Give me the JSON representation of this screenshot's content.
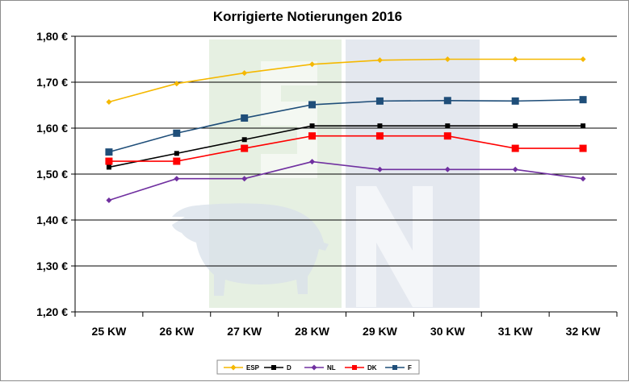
{
  "chart_data": {
    "type": "line",
    "title": "Korrigierte Notierungen 2016",
    "categories": [
      "25 KW",
      "26 KW",
      "27 KW",
      "28 KW",
      "29 KW",
      "30 KW",
      "31 KW",
      "32 KW"
    ],
    "ylim": [
      1.2,
      1.8
    ],
    "yticks": [
      1.2,
      1.3,
      1.4,
      1.5,
      1.6,
      1.7,
      1.8
    ],
    "ytick_labels": [
      "1,20 €",
      "1,30 €",
      "1,40 €",
      "1,50 €",
      "1,60 €",
      "1,70 €",
      "1,80 €"
    ],
    "grid": "horizontal",
    "legend_position": "bottom",
    "series": [
      {
        "name": "ESP",
        "color": "#f5b800",
        "marker": "diamond",
        "values": [
          1.657,
          1.697,
          1.72,
          1.739,
          1.748,
          1.75,
          1.75,
          1.75
        ]
      },
      {
        "name": "D",
        "color": "#000000",
        "marker": "square-small",
        "values": [
          1.515,
          1.545,
          1.575,
          1.605,
          1.605,
          1.605,
          1.605,
          1.605
        ]
      },
      {
        "name": "NL",
        "color": "#7030a0",
        "marker": "diamond",
        "values": [
          1.443,
          1.49,
          1.49,
          1.527,
          1.51,
          1.51,
          1.51,
          1.49
        ]
      },
      {
        "name": "DK",
        "color": "#ff0000",
        "marker": "square",
        "values": [
          1.528,
          1.528,
          1.556,
          1.583,
          1.583,
          1.583,
          1.556,
          1.556
        ]
      },
      {
        "name": "F",
        "color": "#1f4e79",
        "marker": "square",
        "values": [
          1.548,
          1.589,
          1.622,
          1.651,
          1.659,
          1.66,
          1.659,
          1.662
        ]
      }
    ]
  }
}
